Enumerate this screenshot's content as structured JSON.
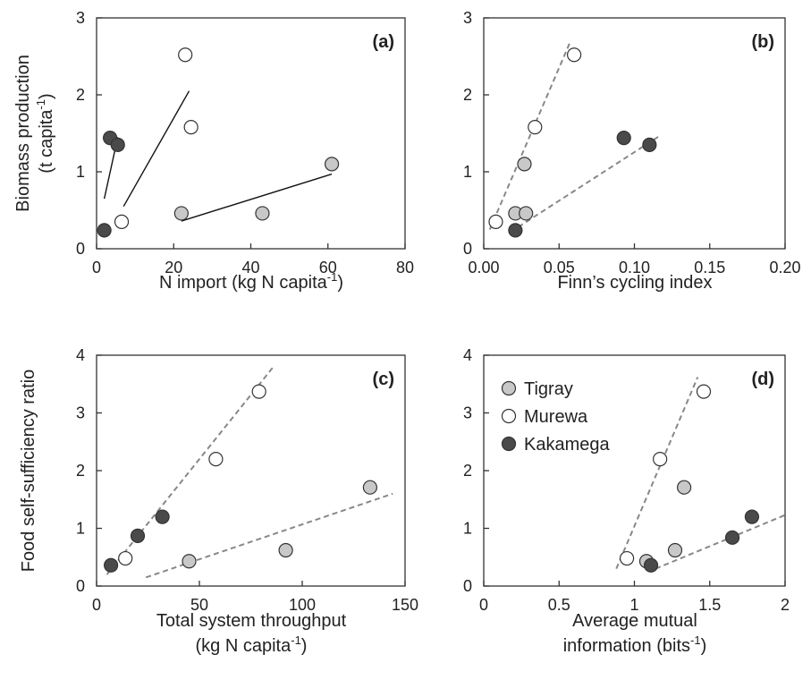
{
  "figure": {
    "title": ""
  },
  "legend": {
    "placement": "top-left of panel (d)",
    "items": [
      {
        "name": "Tigray",
        "fill": "#c8c8c8"
      },
      {
        "name": "Murewa",
        "fill": "#ffffff"
      },
      {
        "name": "Kakamega",
        "fill": "#4a4a4a"
      }
    ]
  },
  "colors": {
    "Tigray": "#c8c8c8",
    "Murewa": "#ffffff",
    "Kakamega": "#4a4a4a",
    "marker_edge": "#333333",
    "solid_line": "#111111",
    "dashed_line": "#888888",
    "axis": "#333333"
  },
  "chart_data": [
    {
      "panel": "(a)",
      "type": "scatter",
      "title": "",
      "xlabel": "N import (kg N capita-1)",
      "ylabel": "Biomass production (t capita-1)",
      "xlim": [
        0,
        80
      ],
      "ylim": [
        0,
        3
      ],
      "xticks": [
        0,
        20,
        40,
        60,
        80
      ],
      "yticks": [
        0,
        1,
        2,
        3
      ],
      "xtick_labels": [
        "0",
        "20",
        "40",
        "60",
        "80"
      ],
      "ytick_labels": [
        "0",
        "1",
        "2",
        "3"
      ],
      "grid": false,
      "series": [
        {
          "site": "Tigray",
          "points": [
            [
              22,
              0.46
            ],
            [
              43,
              0.46
            ],
            [
              61,
              1.1
            ]
          ]
        },
        {
          "site": "Murewa",
          "points": [
            [
              6.5,
              0.35
            ],
            [
              23,
              2.52
            ],
            [
              24.5,
              1.58
            ]
          ]
        },
        {
          "site": "Kakamega",
          "points": [
            [
              2,
              0.24
            ],
            [
              3.5,
              1.44
            ],
            [
              5.5,
              1.35
            ]
          ]
        }
      ],
      "trendlines": [
        {
          "site": "Kakamega",
          "style": "solid",
          "from": [
            2,
            0.65
          ],
          "to": [
            5.5,
            1.45
          ]
        },
        {
          "site": "Murewa",
          "style": "solid",
          "from": [
            7,
            0.55
          ],
          "to": [
            24,
            2.05
          ]
        },
        {
          "site": "Tigray",
          "style": "solid",
          "from": [
            22,
            0.36
          ],
          "to": [
            61,
            0.97
          ]
        }
      ]
    },
    {
      "panel": "(b)",
      "type": "scatter",
      "title": "",
      "xlabel": "Finn’s cycling index",
      "ylabel": "",
      "xlim": [
        0,
        0.2
      ],
      "ylim": [
        0,
        3
      ],
      "xticks": [
        0,
        0.05,
        0.1,
        0.15,
        0.2
      ],
      "yticks": [
        0,
        1,
        2,
        3
      ],
      "xtick_labels": [
        "0.00",
        "0.05",
        "0.10",
        "0.15",
        "0.20"
      ],
      "ytick_labels": [
        "0",
        "1",
        "2",
        "3"
      ],
      "grid": false,
      "series": [
        {
          "site": "Tigray",
          "points": [
            [
              0.021,
              0.46
            ],
            [
              0.027,
              1.1
            ],
            [
              0.028,
              0.46
            ]
          ]
        },
        {
          "site": "Murewa",
          "points": [
            [
              0.008,
              0.35
            ],
            [
              0.034,
              1.58
            ],
            [
              0.06,
              2.52
            ]
          ]
        },
        {
          "site": "Kakamega",
          "points": [
            [
              0.021,
              0.24
            ],
            [
              0.093,
              1.44
            ],
            [
              0.11,
              1.35
            ]
          ]
        }
      ],
      "trendlines": [
        {
          "site": "Murewa+Tigray",
          "style": "dashed",
          "from": [
            0.004,
            0.25
          ],
          "to": [
            0.057,
            2.67
          ]
        },
        {
          "site": "Kakamega",
          "style": "dashed",
          "from": [
            0.018,
            0.22
          ],
          "to": [
            0.117,
            1.47
          ]
        }
      ]
    },
    {
      "panel": "(c)",
      "type": "scatter",
      "title": "",
      "xlabel": "Total system throughput (kg N capita-1)",
      "ylabel": "Food self-sufficiency ratio",
      "xlim": [
        0,
        150
      ],
      "ylim": [
        0,
        4
      ],
      "xticks": [
        0,
        50,
        100,
        150
      ],
      "yticks": [
        0,
        1,
        2,
        3,
        4
      ],
      "xtick_labels": [
        "0",
        "50",
        "100",
        "150"
      ],
      "ytick_labels": [
        "0",
        "1",
        "2",
        "3",
        "4"
      ],
      "grid": false,
      "series": [
        {
          "site": "Tigray",
          "points": [
            [
              45,
              0.43
            ],
            [
              92,
              0.62
            ],
            [
              133,
              1.71
            ]
          ]
        },
        {
          "site": "Murewa",
          "points": [
            [
              14,
              0.48
            ],
            [
              58,
              2.2
            ],
            [
              79,
              3.37
            ]
          ]
        },
        {
          "site": "Kakamega",
          "points": [
            [
              7,
              0.36
            ],
            [
              20,
              0.87
            ],
            [
              32,
              1.2
            ]
          ]
        }
      ],
      "trendlines": [
        {
          "site": "Murewa+Kakamega",
          "style": "dashed",
          "from": [
            5,
            0.2
          ],
          "to": [
            86,
            3.8
          ]
        },
        {
          "site": "Tigray",
          "style": "dashed",
          "from": [
            24,
            0.15
          ],
          "to": [
            144,
            1.6
          ]
        }
      ]
    },
    {
      "panel": "(d)",
      "type": "scatter",
      "title": "",
      "xlabel": "Average mutual information (bits-1)",
      "ylabel": "",
      "xlim": [
        0,
        2
      ],
      "ylim": [
        0,
        4
      ],
      "xticks": [
        0,
        0.5,
        1,
        1.5,
        2
      ],
      "yticks": [
        0,
        1,
        2,
        3,
        4
      ],
      "xtick_labels": [
        "0",
        "0.5",
        "1",
        "1.5",
        "2"
      ],
      "ytick_labels": [
        "0",
        "1",
        "2",
        "3",
        "4"
      ],
      "grid": false,
      "series": [
        {
          "site": "Tigray",
          "points": [
            [
              1.08,
              0.43
            ],
            [
              1.27,
              0.62
            ],
            [
              1.33,
              1.71
            ]
          ]
        },
        {
          "site": "Murewa",
          "points": [
            [
              0.95,
              0.48
            ],
            [
              1.17,
              2.2
            ],
            [
              1.46,
              3.37
            ]
          ]
        },
        {
          "site": "Kakamega",
          "points": [
            [
              1.11,
              0.36
            ],
            [
              1.65,
              0.84
            ],
            [
              1.78,
              1.2
            ]
          ]
        }
      ],
      "trendlines": [
        {
          "site": "Murewa",
          "style": "dashed",
          "from": [
            0.88,
            0.3
          ],
          "to": [
            1.42,
            3.62
          ]
        },
        {
          "site": "Kakamega+Tigray",
          "style": "dashed",
          "from": [
            1.14,
            0.3
          ],
          "to": [
            2.0,
            1.23
          ]
        }
      ]
    }
  ]
}
